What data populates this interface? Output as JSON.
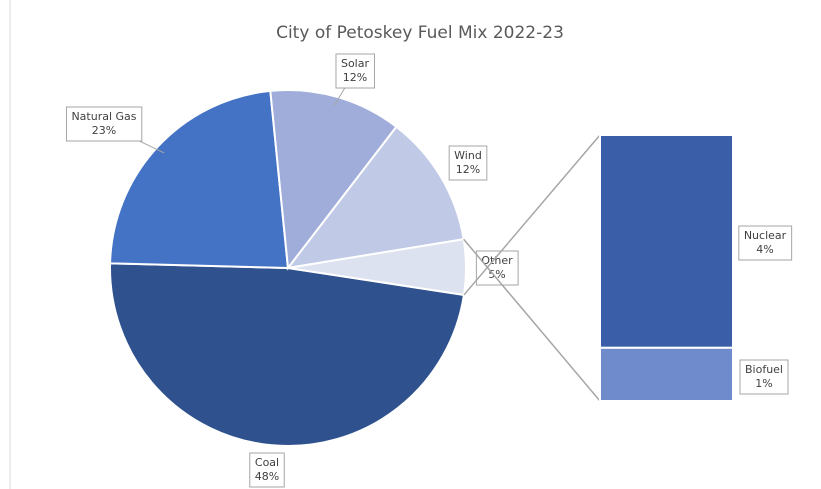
{
  "chart_data": {
    "type": "pie",
    "title": "City of Petoskey Fuel Mix 2022-23",
    "categories": [
      "Coal",
      "Natural Gas",
      "Solar",
      "Wind",
      "Other"
    ],
    "values": [
      48,
      23,
      12,
      12,
      5
    ],
    "value_labels": [
      "48%",
      "23%",
      "12%",
      "12%",
      "5%"
    ],
    "colors": [
      "#2f528f",
      "#4472c4",
      "#a0acd9",
      "#c0c9e6",
      "#dde2f0"
    ],
    "secondary": {
      "type": "bar",
      "categories": [
        "Nuclear",
        "Biofuel"
      ],
      "values": [
        4,
        1
      ],
      "value_labels": [
        "4%",
        "1%"
      ],
      "colors": [
        "#3a5fa8",
        "#6f8bcc"
      ]
    }
  }
}
